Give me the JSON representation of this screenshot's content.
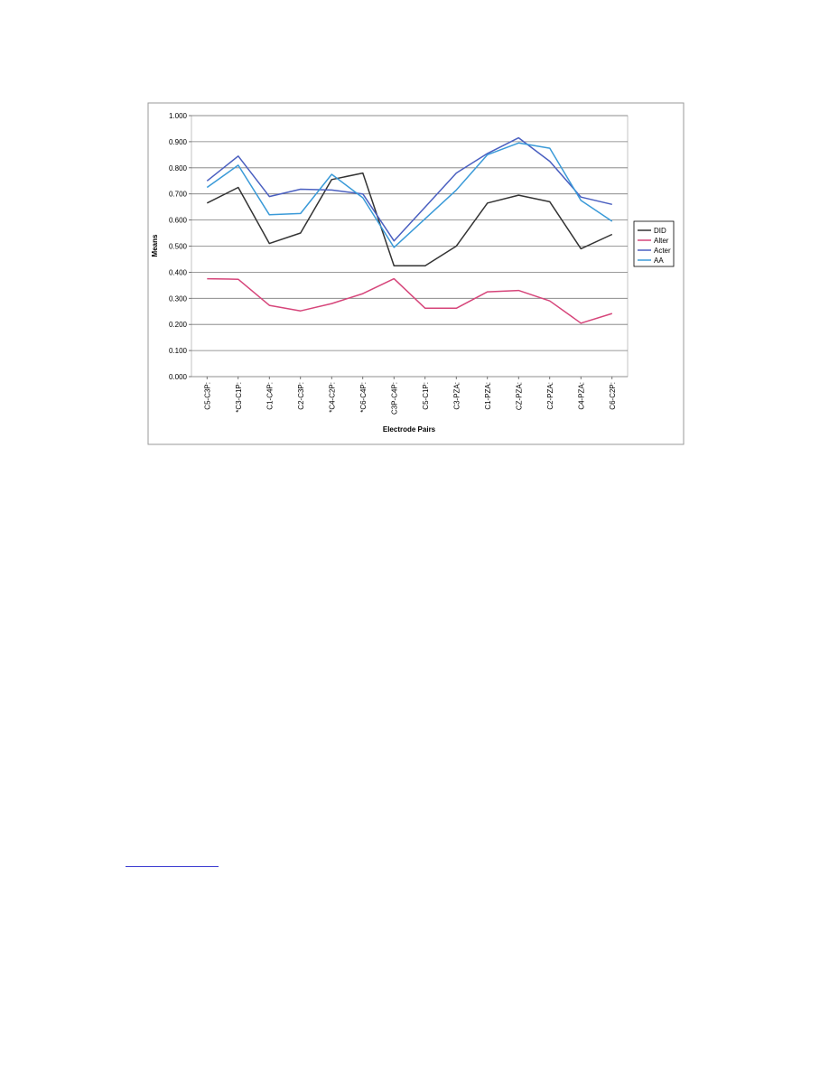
{
  "chart_data": {
    "type": "line",
    "title": "",
    "xlabel": "Electrode Pairs",
    "ylabel": "Means",
    "ylim": [
      0,
      1
    ],
    "y_ticks": [
      "0.000",
      "0.100",
      "0.200",
      "0.300",
      "0.400",
      "0.500",
      "0.600",
      "0.700",
      "0.800",
      "0.900",
      "1.000"
    ],
    "categories": [
      "C5-C3P:",
      "*C3-C1P:",
      "C1-C4P:",
      "C2-C3P:",
      "*C4-C2P:",
      "*C6-C4P:",
      "C3P-C4P:",
      "C5-C1P:",
      "C3-PZA:",
      "C1-PZA:",
      "CZ-PZA:",
      "C2-PZA:",
      "C4-PZA:",
      "C6-C2P:"
    ],
    "grid": true,
    "legend_position": "right",
    "series": [
      {
        "name": "DID",
        "color": "#333333",
        "values": [
          0.665,
          0.725,
          0.51,
          0.55,
          0.755,
          0.78,
          0.425,
          0.425,
          0.5,
          0.665,
          0.695,
          0.67,
          0.49,
          0.545
        ]
      },
      {
        "name": "Alter",
        "color": "#d6457a",
        "values": [
          0.375,
          0.373,
          0.273,
          0.252,
          0.28,
          0.318,
          0.375,
          0.262,
          0.262,
          0.325,
          0.33,
          0.29,
          0.205,
          0.242
        ]
      },
      {
        "name": "Acter",
        "color": "#4a5fc0",
        "values": [
          0.75,
          0.845,
          0.69,
          0.718,
          0.715,
          0.7,
          0.52,
          0.65,
          0.78,
          0.855,
          0.915,
          0.825,
          0.688,
          0.66
        ]
      },
      {
        "name": "AA",
        "color": "#3a9ad8",
        "values": [
          0.725,
          0.81,
          0.62,
          0.625,
          0.775,
          0.685,
          0.495,
          0.605,
          0.715,
          0.85,
          0.895,
          0.875,
          0.675,
          0.595
        ]
      }
    ]
  }
}
